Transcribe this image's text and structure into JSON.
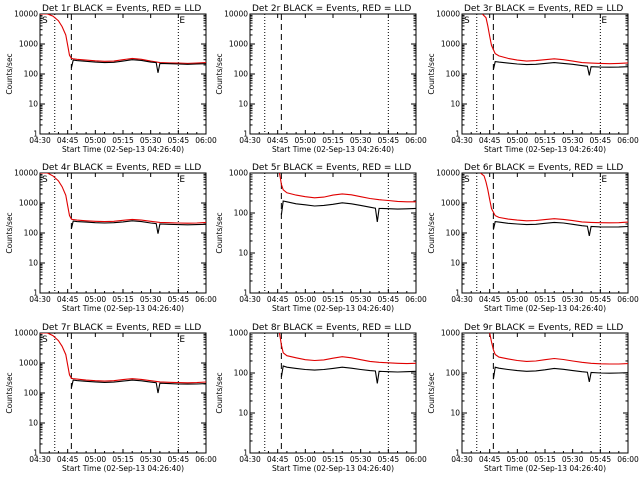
{
  "colors": {
    "axes": "#000000",
    "events": "#000000",
    "lld": "#e00000",
    "background": "#ffffff"
  },
  "x_ticks": [
    "04:30",
    "04:45",
    "05:00",
    "05:15",
    "05:30",
    "05:45",
    "06:00"
  ],
  "x_tick_minutes": [
    270,
    285,
    300,
    315,
    330,
    345,
    360
  ],
  "y_ticks": [
    "1",
    "10",
    "100",
    "1000",
    "10000"
  ],
  "y_tick_values": [
    1,
    10,
    100,
    1000,
    10000
  ],
  "xlabel": "Start Time (02-Sep-13 04:26:40)",
  "ylabel": "Counts/sec",
  "chart_data": [
    {
      "type": "line",
      "title": "Det 1r BLACK = Events, RED = LLD",
      "xlim": [
        "04:30",
        "06:00"
      ],
      "ylim": [
        1,
        10000
      ],
      "yscale": "log",
      "grid": false,
      "dotted_lines": [
        "04:38",
        "05:45"
      ],
      "dashed_lines": [
        "04:47"
      ],
      "markers": [
        {
          "label": "S",
          "x": "04:30"
        },
        {
          "label": "E",
          "x": "05:45"
        }
      ],
      "series": [
        {
          "color": "red",
          "x": [
            "04:30",
            "04:34",
            "04:37",
            "04:40",
            "04:42",
            "04:44",
            "04:45",
            "04:46",
            "04:47",
            "04:48",
            "04:50",
            "04:55",
            "05:00",
            "05:05",
            "05:10",
            "05:15",
            "05:20",
            "05:25",
            "05:30",
            "05:35",
            "05:40",
            "05:45",
            "05:50",
            "05:55",
            "06:00"
          ],
          "y": [
            10000,
            10000,
            8500,
            6000,
            3800,
            2000,
            900,
            420,
            330,
            320,
            310,
            290,
            275,
            265,
            270,
            300,
            330,
            310,
            270,
            240,
            235,
            230,
            225,
            230,
            240
          ]
        },
        {
          "color": "black",
          "x": [
            "04:47",
            "04:48",
            "04:50",
            "04:55",
            "05:00",
            "05:05",
            "05:10",
            "05:15",
            "05:20",
            "05:25",
            "05:30",
            "05:33",
            "05:34",
            "05:35",
            "05:40",
            "05:45",
            "05:50",
            "05:55",
            "06:00"
          ],
          "y": [
            160,
            290,
            280,
            265,
            250,
            240,
            245,
            270,
            300,
            285,
            250,
            240,
            110,
            225,
            220,
            215,
            210,
            215,
            220
          ]
        }
      ]
    },
    {
      "type": "line",
      "title": "Det 2r BLACK = Events, RED = LLD",
      "xlim": [
        "04:30",
        "06:00"
      ],
      "ylim": [
        1,
        10000
      ],
      "yscale": "log",
      "grid": false,
      "dotted_lines": [
        "04:38",
        "05:45"
      ],
      "dashed_lines": [
        "04:47"
      ],
      "markers": [],
      "series": []
    },
    {
      "type": "line",
      "title": "Det 3r BLACK = Events, RED = LLD",
      "xlim": [
        "04:30",
        "06:00"
      ],
      "ylim": [
        1,
        10000
      ],
      "yscale": "log",
      "grid": false,
      "dotted_lines": [
        "04:38",
        "05:45"
      ],
      "dashed_lines": [
        "04:47"
      ],
      "markers": [
        {
          "label": "S",
          "x": "04:30"
        },
        {
          "label": "E",
          "x": "05:45"
        }
      ],
      "series": [
        {
          "color": "red",
          "x": [
            "04:41",
            "04:43",
            "04:44",
            "04:45",
            "04:46",
            "04:48",
            "04:50",
            "04:55",
            "05:00",
            "05:05",
            "05:10",
            "05:15",
            "05:20",
            "05:25",
            "05:30",
            "05:35",
            "05:40",
            "05:45",
            "05:50",
            "05:55",
            "06:00"
          ],
          "y": [
            10000,
            7500,
            4000,
            1800,
            900,
            480,
            400,
            330,
            290,
            270,
            280,
            300,
            320,
            300,
            270,
            240,
            230,
            225,
            220,
            225,
            235
          ]
        },
        {
          "color": "black",
          "x": [
            "04:47",
            "04:48",
            "04:50",
            "04:55",
            "05:00",
            "05:05",
            "05:10",
            "05:15",
            "05:20",
            "05:25",
            "05:30",
            "05:35",
            "05:38",
            "05:39",
            "05:40",
            "05:45",
            "05:50",
            "05:55",
            "06:00"
          ],
          "y": [
            140,
            260,
            250,
            230,
            215,
            205,
            210,
            225,
            240,
            225,
            210,
            190,
            180,
            90,
            175,
            170,
            168,
            170,
            175
          ]
        }
      ]
    },
    {
      "type": "line",
      "title": "Det 4r BLACK = Events, RED = LLD",
      "xlim": [
        "04:30",
        "06:00"
      ],
      "ylim": [
        1,
        10000
      ],
      "yscale": "log",
      "grid": false,
      "dotted_lines": [
        "04:38",
        "05:45"
      ],
      "dashed_lines": [
        "04:47"
      ],
      "markers": [
        {
          "label": "S",
          "x": "04:30"
        },
        {
          "label": "E",
          "x": "05:45"
        }
      ],
      "series": [
        {
          "color": "red",
          "x": [
            "04:30",
            "04:34",
            "04:37",
            "04:40",
            "04:42",
            "04:44",
            "04:45",
            "04:46",
            "04:47",
            "04:48",
            "04:50",
            "04:55",
            "05:00",
            "05:05",
            "05:10",
            "05:15",
            "05:20",
            "05:25",
            "05:30",
            "05:35",
            "05:40",
            "05:45",
            "05:50",
            "05:55",
            "06:00"
          ],
          "y": [
            10000,
            10000,
            8000,
            5500,
            3500,
            1800,
            800,
            380,
            290,
            280,
            270,
            255,
            245,
            240,
            245,
            265,
            285,
            270,
            245,
            225,
            220,
            215,
            212,
            215,
            225
          ]
        },
        {
          "color": "black",
          "x": [
            "04:47",
            "04:48",
            "04:50",
            "04:55",
            "05:00",
            "05:05",
            "05:10",
            "05:15",
            "05:20",
            "05:25",
            "05:30",
            "05:33",
            "05:34",
            "05:35",
            "05:40",
            "05:45",
            "05:50",
            "05:55",
            "06:00"
          ],
          "y": [
            140,
            250,
            240,
            230,
            220,
            215,
            220,
            235,
            255,
            240,
            215,
            205,
            95,
            200,
            195,
            190,
            188,
            190,
            195
          ]
        }
      ]
    },
    {
      "type": "line",
      "title": "Det 5r BLACK = Events, RED = LLD",
      "xlim": [
        "04:30",
        "06:00"
      ],
      "ylim": [
        1,
        1000
      ],
      "yscale": "log",
      "grid": false,
      "dotted_lines": [
        "04:38",
        "05:45"
      ],
      "dashed_lines": [
        "04:47"
      ],
      "markers": [],
      "series": [
        {
          "color": "red",
          "x": [
            "04:46",
            "04:47",
            "04:48",
            "04:50",
            "04:55",
            "05:00",
            "05:05",
            "05:10",
            "05:15",
            "05:20",
            "05:25",
            "05:30",
            "05:35",
            "05:40",
            "05:45",
            "05:50",
            "05:55",
            "06:00"
          ],
          "y": [
            1000,
            520,
            380,
            320,
            280,
            255,
            240,
            250,
            280,
            300,
            285,
            255,
            230,
            215,
            205,
            195,
            190,
            190
          ]
        },
        {
          "color": "black",
          "x": [
            "04:47",
            "04:48",
            "04:50",
            "04:55",
            "05:00",
            "05:05",
            "05:10",
            "05:15",
            "05:20",
            "05:25",
            "05:30",
            "05:35",
            "05:38",
            "05:39",
            "05:40",
            "05:45",
            "05:50",
            "05:55",
            "06:00"
          ],
          "y": [
            90,
            200,
            190,
            170,
            160,
            150,
            155,
            165,
            180,
            170,
            155,
            140,
            132,
            60,
            130,
            128,
            125,
            127,
            130
          ]
        }
      ]
    },
    {
      "type": "line",
      "title": "Det 6r BLACK = Events, RED = LLD",
      "xlim": [
        "04:30",
        "06:00"
      ],
      "ylim": [
        1,
        10000
      ],
      "yscale": "log",
      "grid": false,
      "dotted_lines": [
        "04:38",
        "05:45"
      ],
      "dashed_lines": [
        "04:47"
      ],
      "markers": [
        {
          "label": "S",
          "x": "04:30"
        },
        {
          "label": "E",
          "x": "05:45"
        }
      ],
      "series": [
        {
          "color": "red",
          "x": [
            "04:40",
            "04:42",
            "04:43",
            "04:44",
            "04:45",
            "04:46",
            "04:48",
            "04:50",
            "04:55",
            "05:00",
            "05:05",
            "05:10",
            "05:15",
            "05:20",
            "05:25",
            "05:30",
            "05:35",
            "05:40",
            "05:45",
            "05:50",
            "05:55",
            "06:00"
          ],
          "y": [
            10000,
            8000,
            5000,
            2800,
            1300,
            650,
            380,
            330,
            290,
            270,
            255,
            262,
            280,
            300,
            285,
            260,
            235,
            225,
            220,
            218,
            220,
            230
          ]
        },
        {
          "color": "black",
          "x": [
            "04:47",
            "04:48",
            "04:50",
            "04:55",
            "05:00",
            "05:05",
            "05:10",
            "05:15",
            "05:20",
            "05:25",
            "05:30",
            "05:35",
            "05:38",
            "05:39",
            "05:40",
            "05:45",
            "05:50",
            "05:55",
            "06:00"
          ],
          "y": [
            130,
            240,
            230,
            210,
            200,
            190,
            195,
            210,
            225,
            215,
            195,
            175,
            168,
            80,
            165,
            160,
            158,
            160,
            165
          ]
        }
      ]
    },
    {
      "type": "line",
      "title": "Det 7r BLACK = Events, RED = LLD",
      "xlim": [
        "04:30",
        "06:00"
      ],
      "ylim": [
        1,
        10000
      ],
      "yscale": "log",
      "grid": false,
      "dotted_lines": [
        "04:38",
        "05:45"
      ],
      "dashed_lines": [
        "04:47"
      ],
      "markers": [
        {
          "label": "S",
          "x": "04:30"
        },
        {
          "label": "E",
          "x": "05:45"
        }
      ],
      "series": [
        {
          "color": "red",
          "x": [
            "04:30",
            "04:34",
            "04:37",
            "04:40",
            "04:42",
            "04:44",
            "04:45",
            "04:46",
            "04:47",
            "04:48",
            "04:50",
            "04:55",
            "05:00",
            "05:05",
            "05:10",
            "05:15",
            "05:20",
            "05:25",
            "05:30",
            "05:35",
            "05:40",
            "05:45",
            "05:50",
            "05:55",
            "06:00"
          ],
          "y": [
            10000,
            10000,
            8200,
            5600,
            3600,
            1900,
            850,
            400,
            310,
            300,
            290,
            270,
            258,
            250,
            258,
            280,
            300,
            285,
            258,
            235,
            228,
            222,
            218,
            222,
            232
          ]
        },
        {
          "color": "black",
          "x": [
            "04:47",
            "04:48",
            "04:50",
            "04:55",
            "05:00",
            "05:05",
            "05:10",
            "05:15",
            "05:20",
            "05:25",
            "05:30",
            "05:33",
            "05:34",
            "05:35",
            "05:40",
            "05:45",
            "05:50",
            "05:55",
            "06:00"
          ],
          "y": [
            150,
            270,
            260,
            245,
            235,
            225,
            230,
            250,
            270,
            255,
            230,
            220,
            100,
            212,
            205,
            200,
            198,
            200,
            205
          ]
        }
      ]
    },
    {
      "type": "line",
      "title": "Det 8r BLACK = Events, RED = LLD",
      "xlim": [
        "04:30",
        "06:00"
      ],
      "ylim": [
        1,
        1000
      ],
      "yscale": "log",
      "grid": false,
      "dotted_lines": [
        "04:38",
        "05:45"
      ],
      "dashed_lines": [
        "04:47"
      ],
      "markers": [],
      "series": [
        {
          "color": "red",
          "x": [
            "04:46",
            "04:47",
            "04:48",
            "04:50",
            "04:55",
            "05:00",
            "05:05",
            "05:10",
            "05:15",
            "05:20",
            "05:25",
            "05:30",
            "05:35",
            "05:40",
            "05:45",
            "05:50",
            "05:55",
            "06:00"
          ],
          "y": [
            1000,
            500,
            320,
            270,
            240,
            215,
            205,
            212,
            235,
            255,
            240,
            215,
            195,
            185,
            180,
            175,
            172,
            175
          ]
        },
        {
          "color": "black",
          "x": [
            "04:47",
            "04:48",
            "04:50",
            "04:55",
            "05:00",
            "05:05",
            "05:10",
            "05:15",
            "05:20",
            "05:25",
            "05:30",
            "05:35",
            "05:38",
            "05:39",
            "05:40",
            "05:45",
            "05:50",
            "05:55",
            "06:00"
          ],
          "y": [
            80,
            150,
            140,
            130,
            122,
            118,
            122,
            130,
            140,
            132,
            122,
            115,
            112,
            55,
            110,
            108,
            106,
            108,
            110
          ]
        }
      ]
    },
    {
      "type": "line",
      "title": "Det 9r BLACK = Events, RED = LLD",
      "xlim": [
        "04:30",
        "06:00"
      ],
      "ylim": [
        1,
        1000
      ],
      "yscale": "log",
      "grid": false,
      "dotted_lines": [
        "04:38",
        "05:45"
      ],
      "dashed_lines": [
        "04:47"
      ],
      "markers": [],
      "series": [
        {
          "color": "red",
          "x": [
            "04:45",
            "04:46",
            "04:47",
            "04:48",
            "04:50",
            "04:55",
            "05:00",
            "05:05",
            "05:10",
            "05:15",
            "05:20",
            "05:25",
            "05:30",
            "05:35",
            "05:40",
            "05:45",
            "05:50",
            "05:55",
            "06:00"
          ],
          "y": [
            1000,
            600,
            380,
            290,
            250,
            225,
            205,
            195,
            200,
            215,
            230,
            218,
            200,
            185,
            175,
            170,
            168,
            168,
            172
          ]
        },
        {
          "color": "black",
          "x": [
            "04:47",
            "04:48",
            "04:50",
            "04:55",
            "05:00",
            "05:05",
            "05:10",
            "05:15",
            "05:20",
            "05:25",
            "05:30",
            "05:35",
            "05:38",
            "05:39",
            "05:40",
            "05:45",
            "05:50",
            "05:55",
            "06:00"
          ],
          "y": [
            70,
            140,
            132,
            122,
            115,
            110,
            113,
            120,
            130,
            124,
            115,
            108,
            105,
            60,
            103,
            100,
            99,
            100,
            102
          ]
        }
      ]
    }
  ]
}
